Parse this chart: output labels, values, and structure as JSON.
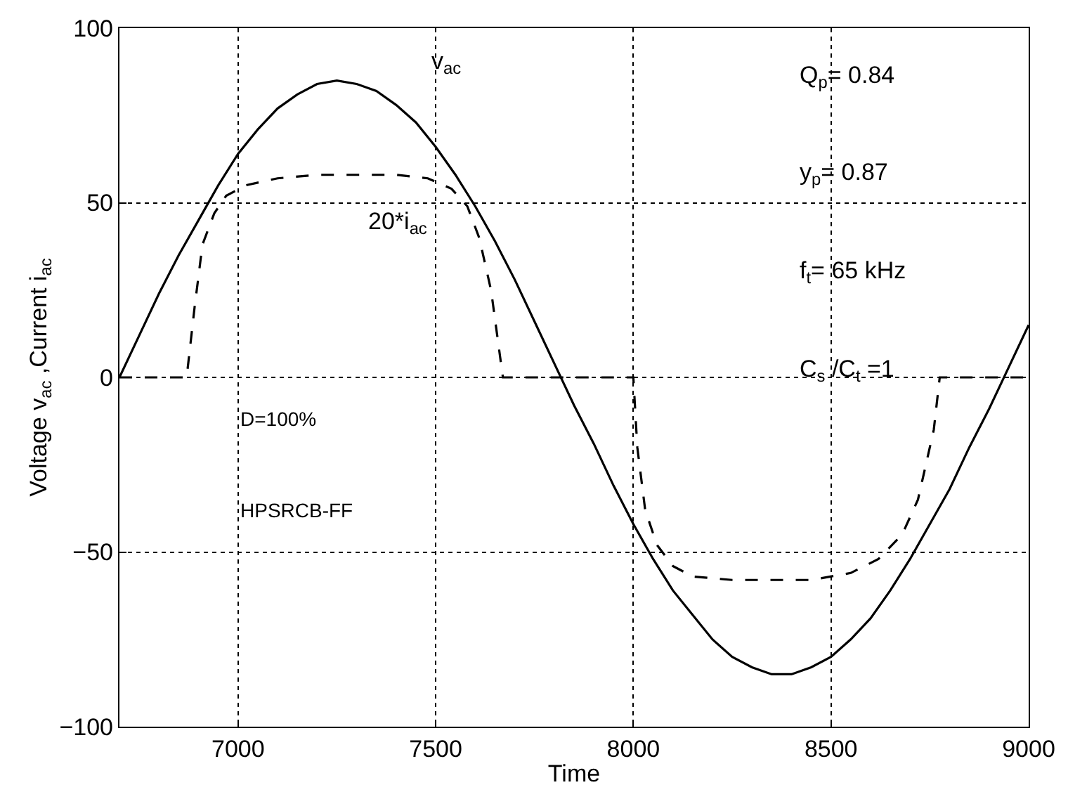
{
  "chart_data": {
    "type": "line",
    "xlabel": "Time",
    "ylabel": "Voltage v$_{ac}$ ,Current i$_{ac}$",
    "xlim": [
      6700,
      9000
    ],
    "xticks": [
      7000,
      7500,
      8000,
      8500,
      9000
    ],
    "ylim": [
      -100,
      100
    ],
    "yticks": [
      -100,
      -50,
      0,
      50,
      100
    ],
    "grid": true,
    "legend": false,
    "marker": "none",
    "series": [
      {
        "name": "v$_{ac}$",
        "color": "#000000",
        "line_style": "solid",
        "x": [
          6700,
          6750,
          6800,
          6850,
          6900,
          6950,
          7000,
          7050,
          7100,
          7150,
          7200,
          7250,
          7300,
          7350,
          7400,
          7450,
          7500,
          7550,
          7600,
          7650,
          7700,
          7750,
          7800,
          7850,
          7900,
          7950,
          8000,
          8050,
          8100,
          8150,
          8200,
          8250,
          8300,
          8350,
          8400,
          8450,
          8500,
          8550,
          8600,
          8650,
          8700,
          8750,
          8800,
          8850,
          8900,
          8950,
          9000
        ],
        "values": [
          0,
          12,
          24,
          35,
          45,
          55,
          64,
          71,
          77,
          81,
          84,
          85,
          84,
          82,
          78,
          73,
          66,
          58,
          49,
          39,
          28,
          16,
          4,
          -8,
          -19,
          -31,
          -42,
          -52,
          -61,
          -68,
          -75,
          -80,
          -83,
          -85,
          -85,
          -83,
          -80,
          -75,
          -69,
          -61,
          -52,
          -42,
          -32,
          -20,
          -9,
          3,
          15
        ]
      },
      {
        "name": "20*i$_{ac}$",
        "color": "#000000",
        "line_style": "dashed",
        "x": [
          6700,
          6870,
          6890,
          6910,
          6940,
          6970,
          7020,
          7100,
          7200,
          7400,
          7480,
          7540,
          7580,
          7610,
          7640,
          7670,
          8000,
          8010,
          8030,
          8060,
          8100,
          8150,
          8250,
          8450,
          8550,
          8620,
          8680,
          8720,
          8760,
          8775,
          9000
        ],
        "values": [
          0,
          0,
          20,
          38,
          47,
          52,
          55,
          57,
          58,
          58,
          57,
          54,
          49,
          40,
          25,
          0,
          0,
          -20,
          -38,
          -48,
          -54,
          -57,
          -58,
          -58,
          -56,
          -52,
          -45,
          -35,
          -15,
          0,
          0
        ]
      }
    ],
    "annotations": [
      "Q$_{p}$= 0.84",
      "y$_{p}$= 0.87",
      "f$_{t}$= 65 kHz",
      "C$_{s}$ /C$_{t}$ =1",
      "D=100%",
      "HPSRCB-FF"
    ]
  }
}
